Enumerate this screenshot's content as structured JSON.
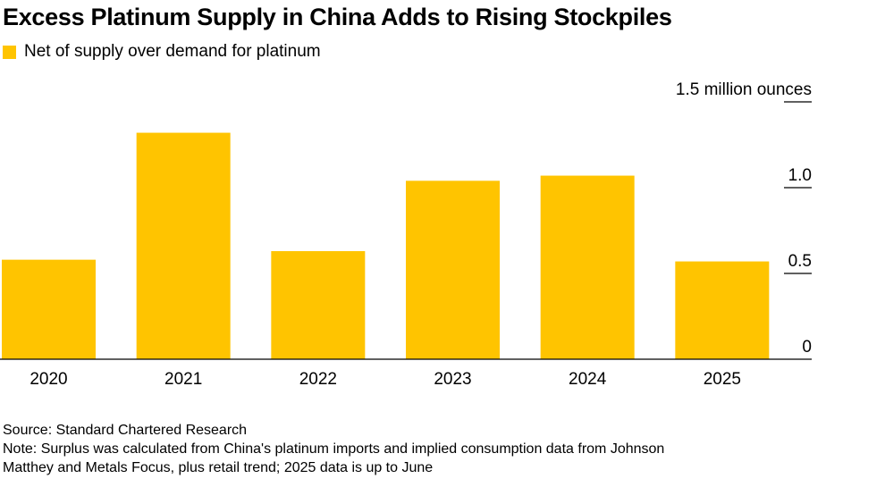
{
  "chart_data": {
    "type": "bar",
    "title": "Excess Platinum Supply in China Adds to Rising Stockpiles",
    "legend": [
      {
        "label": "Net of supply over demand for platinum",
        "color": "#FFC400"
      }
    ],
    "categories": [
      "2020",
      "2021",
      "2022",
      "2023",
      "2024",
      "2025"
    ],
    "values": [
      0.58,
      1.32,
      0.63,
      1.04,
      1.07,
      0.57
    ],
    "ylim": [
      0,
      1.5
    ],
    "yticks": [
      {
        "value": 0,
        "label": "0"
      },
      {
        "value": 0.5,
        "label": "0.5"
      },
      {
        "value": 1.0,
        "label": "1.0"
      },
      {
        "value": 1.5,
        "label": "1.5 million ounces"
      }
    ],
    "xlabel": "",
    "ylabel": "",
    "y_axis_side": "right",
    "bar_color": "#FFC400",
    "axis_color": "#000000"
  },
  "footer": {
    "source": "Source: Standard Chartered Research",
    "note_line1": "Note: Surplus was calculated from China's platinum imports and implied consumption data from Johnson",
    "note_line2": "Matthey and Metals Focus, plus retail trend; 2025 data is up to June"
  }
}
